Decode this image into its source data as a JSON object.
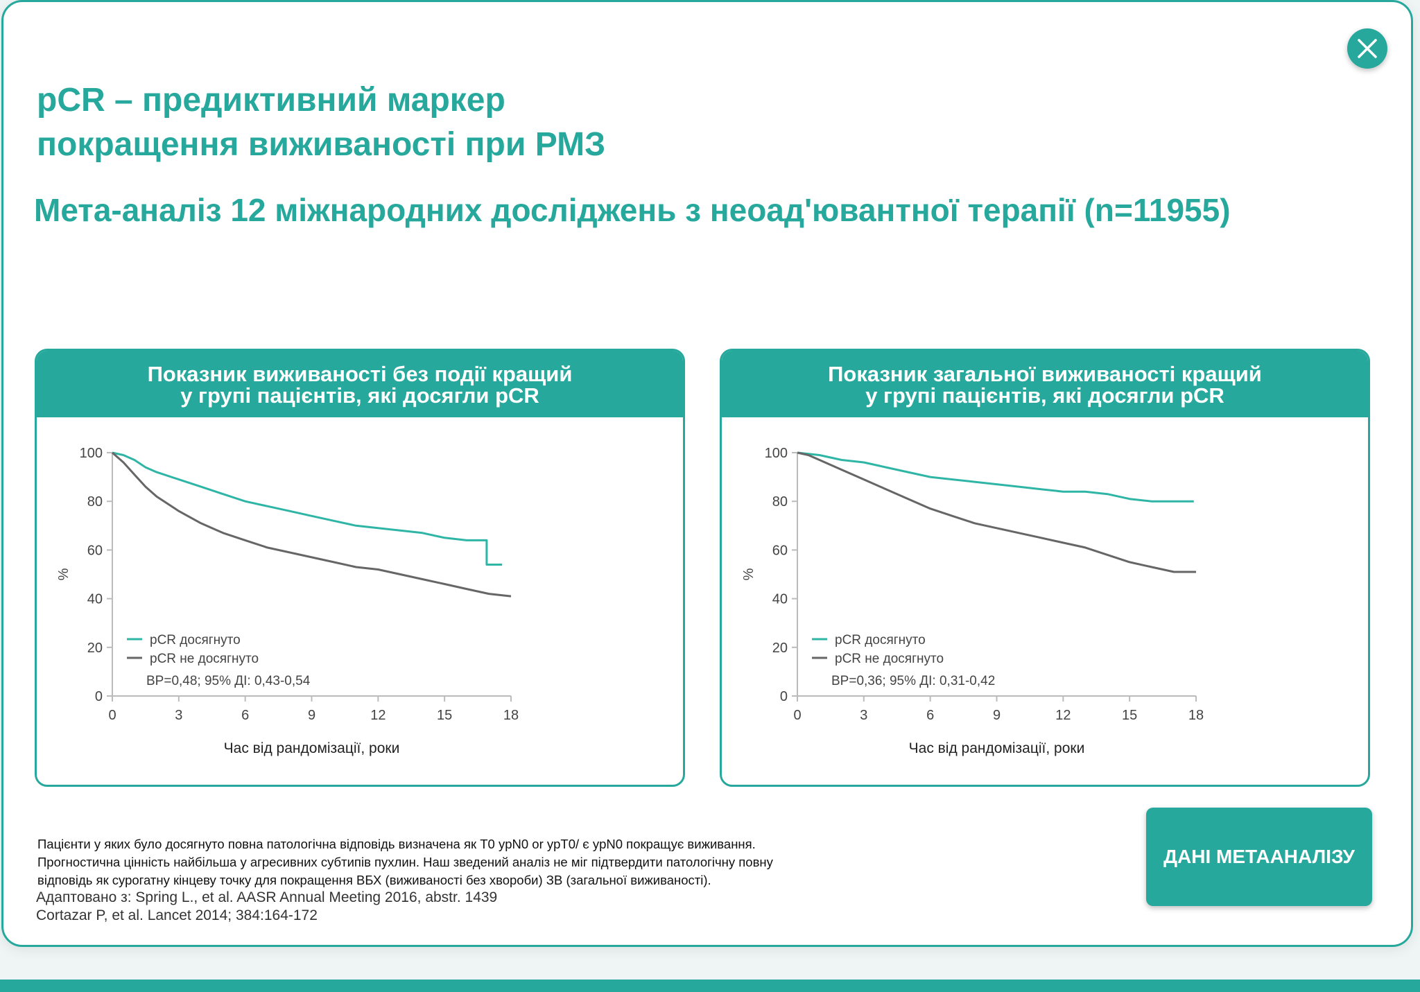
{
  "title": {
    "line1": "pCR – предиктивний маркер",
    "line2": "покращення виживаності при РМЗ"
  },
  "subtitle": "Мета-аналіз 12 міжнародних досліджень з неоад'ювантної терапії (n=11955)",
  "colors": {
    "accent": "#26a89c",
    "series_pcr": "#2fb5a6",
    "series_no_pcr": "#666666"
  },
  "icons": {
    "close": "close-icon"
  },
  "panels": [
    {
      "header_line1": "Показник виживаності без події кращий",
      "header_line2": "у групі пацієнтів, які досягли pCR",
      "legend_pcr": "pCR досягнуто",
      "legend_no_pcr": "pCR не досягнуто",
      "hr_text": "ВР=0,48; 95% ДІ: 0,43-0,54"
    },
    {
      "header_line1": "Показник загальної виживаності кращий",
      "header_line2": "у групі пацієнтів, які досягли pCR",
      "legend_pcr": "pCR досягнуто",
      "legend_no_pcr": "pCR не досягнуто",
      "hr_text": "ВР=0,36; 95% ДІ: 0,31-0,42"
    }
  ],
  "chart_data": [
    {
      "type": "line",
      "xlabel": "Час від рандомізації, роки",
      "ylabel": "%",
      "xlim": [
        0,
        18
      ],
      "ylim": [
        0,
        100
      ],
      "xticks": [
        0,
        3,
        6,
        9,
        12,
        15,
        18
      ],
      "yticks": [
        0,
        20,
        40,
        60,
        80,
        100
      ],
      "grid": false,
      "legend": "bottom-left",
      "series": [
        {
          "name": "pCR досягнуто",
          "x": [
            0,
            0.5,
            1,
            1.5,
            2,
            3,
            4,
            5,
            6,
            7,
            8,
            9,
            10,
            11,
            12,
            13,
            14,
            15,
            16,
            16.9,
            16.9,
            17.6
          ],
          "y": [
            100,
            99,
            97,
            94,
            92,
            89,
            86,
            83,
            80,
            78,
            76,
            74,
            72,
            70,
            69,
            68,
            67,
            65,
            64,
            64,
            54,
            54
          ]
        },
        {
          "name": "pCR не досягнуто",
          "x": [
            0,
            0.5,
            1,
            1.5,
            2,
            3,
            4,
            5,
            6,
            7,
            8,
            9,
            10,
            11,
            12,
            13,
            14,
            15,
            16,
            17,
            18
          ],
          "y": [
            100,
            96,
            91,
            86,
            82,
            76,
            71,
            67,
            64,
            61,
            59,
            57,
            55,
            53,
            52,
            50,
            48,
            46,
            44,
            42,
            41
          ]
        }
      ]
    },
    {
      "type": "line",
      "xlabel": "Час від рандомізації, роки",
      "ylabel": "%",
      "xlim": [
        0,
        18
      ],
      "ylim": [
        0,
        100
      ],
      "xticks": [
        0,
        3,
        6,
        9,
        12,
        15,
        18
      ],
      "yticks": [
        0,
        20,
        40,
        60,
        80,
        100
      ],
      "grid": false,
      "legend": "bottom-left",
      "series": [
        {
          "name": "pCR досягнуто",
          "x": [
            0,
            0.5,
            1,
            2,
            3,
            4,
            5,
            6,
            7,
            8,
            9,
            10,
            11,
            12,
            13,
            14,
            15,
            16,
            17,
            17.9
          ],
          "y": [
            100,
            99.5,
            99,
            97,
            96,
            94,
            92,
            90,
            89,
            88,
            87,
            86,
            85,
            84,
            84,
            83,
            81,
            80,
            80,
            80
          ]
        },
        {
          "name": "pCR не досягнуто",
          "x": [
            0,
            0.5,
            1,
            2,
            3,
            4,
            5,
            6,
            7,
            8,
            9,
            10,
            11,
            12,
            13,
            14,
            15,
            16,
            17,
            18
          ],
          "y": [
            100,
            99,
            97,
            93,
            89,
            85,
            81,
            77,
            74,
            71,
            69,
            67,
            65,
            63,
            61,
            58,
            55,
            53,
            51,
            51
          ]
        }
      ]
    }
  ],
  "footnote": {
    "line1": "Пацієнти у яких було досягнуто повна патологічна відповідь визначена як T0 ypN0 or ypT0/ є ypN0 покращує виживання.",
    "line2": "Прогностична цінність найбільша у агресивних субтипів пухлин. Наш зведений аналіз не міг підтвердити патологічну повну",
    "line3": "відповідь як сурогатну кінцеву точку для покращення ВБХ (виживаності без хвороби) ЗВ (загальної виживаності)."
  },
  "references": {
    "line1": "Адаптовано з: Spring L., et al. AASR Annual Meeting 2016, abstr. 1439",
    "line2": "Cortazar P, et al. Lancet 2014; 384:164-172"
  },
  "cta_label": "ДАНІ МЕТААНАЛІЗУ"
}
